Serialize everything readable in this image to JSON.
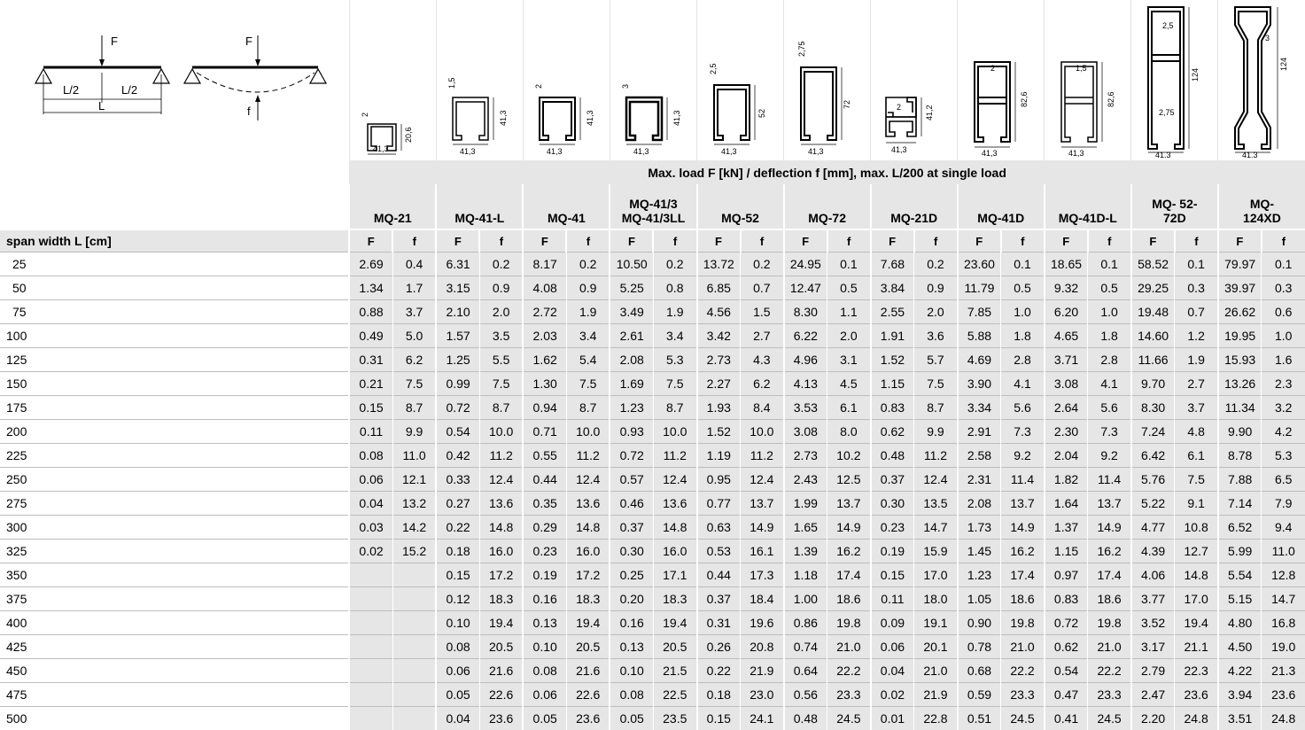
{
  "caption": "Max. load F [kN] / deflection f [mm], max. L/200 at single load",
  "row_label": "span width L [cm]",
  "f_label": "F",
  "d_label": "f",
  "beam": {
    "force": "F",
    "half_left": "L/2",
    "half_right": "L/2",
    "length": "L",
    "deflection": "f"
  },
  "profiles": [
    {
      "name": "MQ-21",
      "dims": {
        "w": "41,3",
        "h": "20,6",
        "t": "2"
      }
    },
    {
      "name": "MQ-41-L",
      "dims": {
        "w": "41,3",
        "h": "41,3",
        "t": "1,5"
      }
    },
    {
      "name": "MQ-41",
      "dims": {
        "w": "41,3",
        "h": "41,3",
        "t": "2"
      }
    },
    {
      "name": "MQ-41/3 MQ-41/3LL",
      "dims": {
        "w": "41,3",
        "h": "41,3",
        "t": "3"
      }
    },
    {
      "name": "MQ-52",
      "dims": {
        "w": "41,3",
        "h": "52",
        "t": "2,5"
      }
    },
    {
      "name": "MQ-72",
      "dims": {
        "w": "41,3",
        "h": "72",
        "t": "2,75"
      }
    },
    {
      "name": "MQ-21D",
      "dims": {
        "w": "41,3",
        "h": "41,2",
        "t": "2"
      }
    },
    {
      "name": "MQ-41D",
      "dims": {
        "w": "41,3",
        "h": "82,6",
        "t": "2"
      }
    },
    {
      "name": "MQ-41D-L",
      "dims": {
        "w": "41,3",
        "h": "82,6",
        "t": "1,5"
      }
    },
    {
      "name": "MQ- 52-72D",
      "dims": {
        "w": "41,3",
        "h": "124",
        "t": "2,5",
        "t2": "2,75"
      }
    },
    {
      "name": "MQ- 124XD",
      "dims": {
        "w": "41,3",
        "h": "124",
        "t": "3"
      }
    }
  ],
  "spans": [
    "25",
    "50",
    "75",
    "100",
    "125",
    "150",
    "175",
    "200",
    "225",
    "250",
    "275",
    "300",
    "325",
    "350",
    "375",
    "400",
    "425",
    "450",
    "475",
    "500"
  ],
  "rows": [
    [
      "2.69",
      "0.4",
      "6.31",
      "0.2",
      "8.17",
      "0.2",
      "10.50",
      "0.2",
      "13.72",
      "0.2",
      "24.95",
      "0.1",
      "7.68",
      "0.2",
      "23.60",
      "0.1",
      "18.65",
      "0.1",
      "58.52",
      "0.1",
      "79.97",
      "0.1"
    ],
    [
      "1.34",
      "1.7",
      "3.15",
      "0.9",
      "4.08",
      "0.9",
      "5.25",
      "0.8",
      "6.85",
      "0.7",
      "12.47",
      "0.5",
      "3.84",
      "0.9",
      "11.79",
      "0.5",
      "9.32",
      "0.5",
      "29.25",
      "0.3",
      "39.97",
      "0.3"
    ],
    [
      "0.88",
      "3.7",
      "2.10",
      "2.0",
      "2.72",
      "1.9",
      "3.49",
      "1.9",
      "4.56",
      "1.5",
      "8.30",
      "1.1",
      "2.55",
      "2.0",
      "7.85",
      "1.0",
      "6.20",
      "1.0",
      "19.48",
      "0.7",
      "26.62",
      "0.6"
    ],
    [
      "0.49",
      "5.0",
      "1.57",
      "3.5",
      "2.03",
      "3.4",
      "2.61",
      "3.4",
      "3.42",
      "2.7",
      "6.22",
      "2.0",
      "1.91",
      "3.6",
      "5.88",
      "1.8",
      "4.65",
      "1.8",
      "14.60",
      "1.2",
      "19.95",
      "1.0"
    ],
    [
      "0.31",
      "6.2",
      "1.25",
      "5.5",
      "1.62",
      "5.4",
      "2.08",
      "5.3",
      "2.73",
      "4.3",
      "4.96",
      "3.1",
      "1.52",
      "5.7",
      "4.69",
      "2.8",
      "3.71",
      "2.8",
      "11.66",
      "1.9",
      "15.93",
      "1.6"
    ],
    [
      "0.21",
      "7.5",
      "0.99",
      "7.5",
      "1.30",
      "7.5",
      "1.69",
      "7.5",
      "2.27",
      "6.2",
      "4.13",
      "4.5",
      "1.15",
      "7.5",
      "3.90",
      "4.1",
      "3.08",
      "4.1",
      "9.70",
      "2.7",
      "13.26",
      "2.3"
    ],
    [
      "0.15",
      "8.7",
      "0.72",
      "8.7",
      "0.94",
      "8.7",
      "1.23",
      "8.7",
      "1.93",
      "8.4",
      "3.53",
      "6.1",
      "0.83",
      "8.7",
      "3.34",
      "5.6",
      "2.64",
      "5.6",
      "8.30",
      "3.7",
      "11.34",
      "3.2"
    ],
    [
      "0.11",
      "9.9",
      "0.54",
      "10.0",
      "0.71",
      "10.0",
      "0.93",
      "10.0",
      "1.52",
      "10.0",
      "3.08",
      "8.0",
      "0.62",
      "9.9",
      "2.91",
      "7.3",
      "2.30",
      "7.3",
      "7.24",
      "4.8",
      "9.90",
      "4.2"
    ],
    [
      "0.08",
      "11.0",
      "0.42",
      "11.2",
      "0.55",
      "11.2",
      "0.72",
      "11.2",
      "1.19",
      "11.2",
      "2.73",
      "10.2",
      "0.48",
      "11.2",
      "2.58",
      "9.2",
      "2.04",
      "9.2",
      "6.42",
      "6.1",
      "8.78",
      "5.3"
    ],
    [
      "0.06",
      "12.1",
      "0.33",
      "12.4",
      "0.44",
      "12.4",
      "0.57",
      "12.4",
      "0.95",
      "12.4",
      "2.43",
      "12.5",
      "0.37",
      "12.4",
      "2.31",
      "11.4",
      "1.82",
      "11.4",
      "5.76",
      "7.5",
      "7.88",
      "6.5"
    ],
    [
      "0.04",
      "13.2",
      "0.27",
      "13.6",
      "0.35",
      "13.6",
      "0.46",
      "13.6",
      "0.77",
      "13.7",
      "1.99",
      "13.7",
      "0.30",
      "13.5",
      "2.08",
      "13.7",
      "1.64",
      "13.7",
      "5.22",
      "9.1",
      "7.14",
      "7.9"
    ],
    [
      "0.03",
      "14.2",
      "0.22",
      "14.8",
      "0.29",
      "14.8",
      "0.37",
      "14.8",
      "0.63",
      "14.9",
      "1.65",
      "14.9",
      "0.23",
      "14.7",
      "1.73",
      "14.9",
      "1.37",
      "14.9",
      "4.77",
      "10.8",
      "6.52",
      "9.4"
    ],
    [
      "0.02",
      "15.2",
      "0.18",
      "16.0",
      "0.23",
      "16.0",
      "0.30",
      "16.0",
      "0.53",
      "16.1",
      "1.39",
      "16.2",
      "0.19",
      "15.9",
      "1.45",
      "16.2",
      "1.15",
      "16.2",
      "4.39",
      "12.7",
      "5.99",
      "11.0"
    ],
    [
      "",
      "",
      "0.15",
      "17.2",
      "0.19",
      "17.2",
      "0.25",
      "17.1",
      "0.44",
      "17.3",
      "1.18",
      "17.4",
      "0.15",
      "17.0",
      "1.23",
      "17.4",
      "0.97",
      "17.4",
      "4.06",
      "14.8",
      "5.54",
      "12.8"
    ],
    [
      "",
      "",
      "0.12",
      "18.3",
      "0.16",
      "18.3",
      "0.20",
      "18.3",
      "0.37",
      "18.4",
      "1.00",
      "18.6",
      "0.11",
      "18.0",
      "1.05",
      "18.6",
      "0.83",
      "18.6",
      "3.77",
      "17.0",
      "5.15",
      "14.7"
    ],
    [
      "",
      "",
      "0.10",
      "19.4",
      "0.13",
      "19.4",
      "0.16",
      "19.4",
      "0.31",
      "19.6",
      "0.86",
      "19.8",
      "0.09",
      "19.1",
      "0.90",
      "19.8",
      "0.72",
      "19.8",
      "3.52",
      "19.4",
      "4.80",
      "16.8"
    ],
    [
      "",
      "",
      "0.08",
      "20.5",
      "0.10",
      "20.5",
      "0.13",
      "20.5",
      "0.26",
      "20.8",
      "0.74",
      "21.0",
      "0.06",
      "20.1",
      "0.78",
      "21.0",
      "0.62",
      "21.0",
      "3.17",
      "21.1",
      "4.50",
      "19.0"
    ],
    [
      "",
      "",
      "0.06",
      "21.6",
      "0.08",
      "21.6",
      "0.10",
      "21.5",
      "0.22",
      "21.9",
      "0.64",
      "22.2",
      "0.04",
      "21.0",
      "0.68",
      "22.2",
      "0.54",
      "22.2",
      "2.79",
      "22.3",
      "4.22",
      "21.3"
    ],
    [
      "",
      "",
      "0.05",
      "22.6",
      "0.06",
      "22.6",
      "0.08",
      "22.5",
      "0.18",
      "23.0",
      "0.56",
      "23.3",
      "0.02",
      "21.9",
      "0.59",
      "23.3",
      "0.47",
      "23.3",
      "2.47",
      "23.6",
      "3.94",
      "23.6"
    ],
    [
      "",
      "",
      "0.04",
      "23.6",
      "0.05",
      "23.6",
      "0.05",
      "23.5",
      "0.15",
      "24.1",
      "0.48",
      "24.5",
      "0.01",
      "22.8",
      "0.51",
      "24.5",
      "0.41",
      "24.5",
      "2.20",
      "24.8",
      "3.51",
      "24.8"
    ]
  ]
}
